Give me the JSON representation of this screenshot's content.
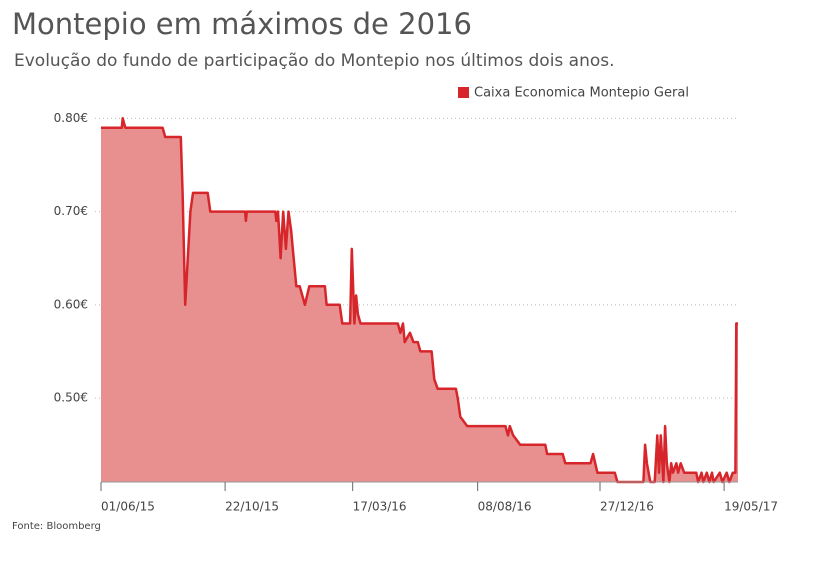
{
  "chart_data": {
    "type": "area",
    "title": "Montepio em máximos de 2016",
    "subtitle": "Evolução do fundo de participação do Montepio nos últimos dois anos.",
    "source": "Fonte: Bloomberg",
    "grid": true,
    "legend": "top-right",
    "xlim": [
      "2015-06-01",
      "2017-06-04"
    ],
    "xticks": [
      {
        "value": "2015-06-01",
        "label": "01/06/15"
      },
      {
        "value": "2015-10-22",
        "label": "22/10/15"
      },
      {
        "value": "2016-03-17",
        "label": "17/03/16"
      },
      {
        "value": "2016-08-08",
        "label": "08/08/16"
      },
      {
        "value": "2016-12-27",
        "label": "27/12/16"
      },
      {
        "value": "2017-05-19",
        "label": "19/05/17"
      }
    ],
    "ylim": [
      0.41,
      0.81
    ],
    "yticks": [
      {
        "value": 0.5,
        "label": "0.50€"
      },
      {
        "value": 0.6,
        "label": "0.60€"
      },
      {
        "value": 0.7,
        "label": "0.70€"
      },
      {
        "value": 0.8,
        "label": "0.80€"
      }
    ],
    "x": [
      "2015-06-01",
      "2015-06-25",
      "2015-06-26",
      "2015-06-29",
      "2015-08-11",
      "2015-08-14",
      "2015-09-01",
      "2015-09-03",
      "2015-09-06",
      "2015-09-12",
      "2015-09-15",
      "2015-10-02",
      "2015-10-05",
      "2015-11-14",
      "2015-11-15",
      "2015-11-16",
      "2015-12-19",
      "2015-12-20",
      "2015-12-22",
      "2015-12-25",
      "2015-12-28",
      "2015-12-31",
      "2016-01-03",
      "2016-01-06",
      "2016-01-08",
      "2016-01-12",
      "2016-01-16",
      "2016-01-19",
      "2016-01-22",
      "2016-01-27",
      "2016-02-14",
      "2016-02-16",
      "2016-03-02",
      "2016-03-05",
      "2016-03-14",
      "2016-03-16",
      "2016-03-19",
      "2016-03-21",
      "2016-03-23",
      "2016-03-26",
      "2016-05-08",
      "2016-05-11",
      "2016-05-14",
      "2016-05-16",
      "2016-05-22",
      "2016-05-26",
      "2016-05-31",
      "2016-06-03",
      "2016-06-16",
      "2016-06-19",
      "2016-06-23",
      "2016-07-14",
      "2016-07-16",
      "2016-07-19",
      "2016-07-27",
      "2016-09-09",
      "2016-09-12",
      "2016-09-14",
      "2016-09-18",
      "2016-09-26",
      "2016-10-25",
      "2016-10-27",
      "2016-11-14",
      "2016-11-17",
      "2016-12-16",
      "2016-12-19",
      "2016-12-24",
      "2017-01-13",
      "2017-01-16",
      "2017-02-15",
      "2017-02-17",
      "2017-02-19",
      "2017-02-23",
      "2017-02-28",
      "2017-03-03",
      "2017-03-05",
      "2017-03-07",
      "2017-03-10",
      "2017-03-12",
      "2017-03-14",
      "2017-03-17",
      "2017-03-19",
      "2017-03-21",
      "2017-03-25",
      "2017-03-27",
      "2017-03-30",
      "2017-04-03",
      "2017-04-17",
      "2017-04-19",
      "2017-04-23",
      "2017-04-25",
      "2017-04-29",
      "2017-05-02",
      "2017-05-05",
      "2017-05-07",
      "2017-05-14",
      "2017-05-17",
      "2017-05-22",
      "2017-05-25",
      "2017-05-29",
      "2017-06-01",
      "2017-06-02",
      "2017-06-04"
    ],
    "series": [
      {
        "name": "Caixa Economica Montepio Geral",
        "color": "#d7262b",
        "fill": "#e8908f",
        "values": [
          0.79,
          0.79,
          0.8,
          0.79,
          0.79,
          0.78,
          0.78,
          0.72,
          0.6,
          0.7,
          0.72,
          0.72,
          0.7,
          0.7,
          0.69,
          0.7,
          0.7,
          0.69,
          0.7,
          0.65,
          0.7,
          0.66,
          0.7,
          0.68,
          0.66,
          0.62,
          0.62,
          0.61,
          0.6,
          0.62,
          0.62,
          0.6,
          0.6,
          0.58,
          0.58,
          0.66,
          0.58,
          0.61,
          0.59,
          0.58,
          0.58,
          0.57,
          0.58,
          0.56,
          0.57,
          0.56,
          0.56,
          0.55,
          0.55,
          0.52,
          0.51,
          0.51,
          0.5,
          0.48,
          0.47,
          0.47,
          0.46,
          0.47,
          0.46,
          0.45,
          0.45,
          0.44,
          0.44,
          0.43,
          0.43,
          0.44,
          0.42,
          0.42,
          0.41,
          0.41,
          0.45,
          0.43,
          0.41,
          0.41,
          0.46,
          0.42,
          0.46,
          0.41,
          0.47,
          0.43,
          0.41,
          0.43,
          0.42,
          0.43,
          0.42,
          0.43,
          0.42,
          0.42,
          0.41,
          0.42,
          0.41,
          0.42,
          0.41,
          0.42,
          0.41,
          0.42,
          0.41,
          0.42,
          0.41,
          0.42,
          0.42,
          0.58,
          0.58
        ]
      }
    ]
  }
}
